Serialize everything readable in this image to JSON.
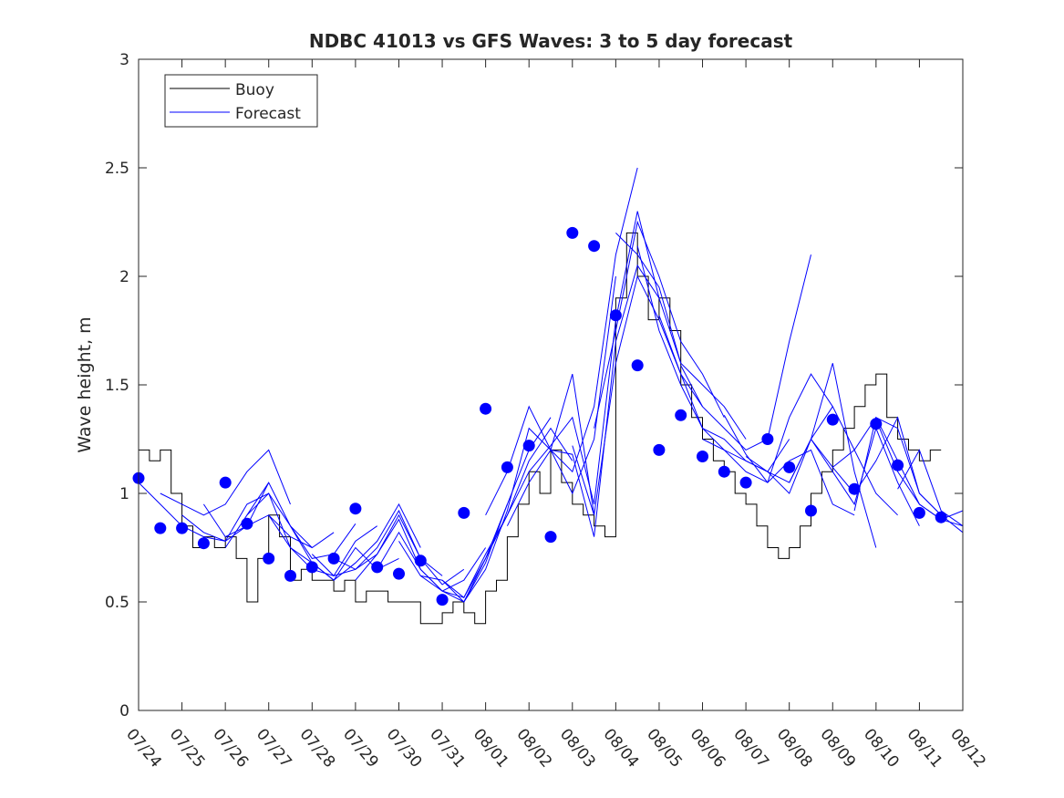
{
  "chart_data": {
    "type": "line",
    "title": "NDBC 41013 vs GFS Waves: 3 to 5 day forecast",
    "xlabel": "",
    "ylabel": "Wave height, m",
    "xlim": [
      0,
      19
    ],
    "ylim": [
      0,
      3
    ],
    "grid": false,
    "legend_position": "top-left",
    "x_tick_labels": [
      "07/24",
      "07/25",
      "07/26",
      "07/27",
      "07/28",
      "07/29",
      "07/30",
      "07/31",
      "08/01",
      "08/02",
      "08/03",
      "08/04",
      "08/05",
      "08/06",
      "08/07",
      "08/08",
      "08/09",
      "08/10",
      "08/11",
      "08/12"
    ],
    "y_ticks": [
      0,
      0.5,
      1,
      1.5,
      2,
      2.5,
      3
    ],
    "y_tick_labels": [
      "0",
      "0.5",
      "1",
      "1.5",
      "2",
      "2.5",
      "3"
    ],
    "legend": [
      {
        "label": "Buoy",
        "color": "#000000"
      },
      {
        "label": "Forecast",
        "color": "#0000ff"
      }
    ],
    "buoy_color": "#000000",
    "forecast_color": "#0000ff",
    "buoy": {
      "name": "Buoy",
      "x": [
        0.0,
        0.25,
        0.5,
        0.75,
        1.0,
        1.25,
        1.5,
        1.75,
        2.0,
        2.25,
        2.5,
        2.75,
        3.0,
        3.25,
        3.5,
        3.75,
        4.0,
        4.25,
        4.5,
        4.75,
        5.0,
        5.25,
        5.5,
        5.75,
        6.0,
        6.25,
        6.5,
        6.75,
        7.0,
        7.25,
        7.5,
        7.75,
        8.0,
        8.25,
        8.5,
        8.75,
        9.0,
        9.25,
        9.5,
        9.75,
        10.0,
        10.25,
        10.5,
        10.75,
        11.0,
        11.25,
        11.5,
        11.75,
        12.0,
        12.25,
        12.5,
        12.75,
        13.0,
        13.25,
        13.5,
        13.75,
        14.0,
        14.25,
        14.5,
        14.75,
        15.0,
        15.25,
        15.5,
        15.75,
        16.0,
        16.25,
        16.5,
        16.75,
        17.0,
        17.25,
        17.5,
        17.75,
        18.0,
        18.25
      ],
      "y": [
        1.2,
        1.15,
        1.2,
        1.0,
        0.85,
        0.75,
        0.8,
        0.75,
        0.8,
        0.7,
        0.5,
        0.7,
        0.9,
        0.8,
        0.6,
        0.65,
        0.6,
        0.6,
        0.55,
        0.6,
        0.5,
        0.55,
        0.55,
        0.5,
        0.5,
        0.5,
        0.4,
        0.4,
        0.45,
        0.5,
        0.45,
        0.4,
        0.55,
        0.6,
        0.8,
        0.95,
        1.1,
        1.0,
        1.2,
        1.05,
        0.95,
        0.9,
        0.85,
        0.8,
        1.9,
        2.2,
        2.0,
        1.8,
        1.9,
        1.75,
        1.5,
        1.35,
        1.25,
        1.15,
        1.1,
        1.0,
        0.95,
        0.85,
        0.75,
        0.7,
        0.75,
        0.85,
        1.0,
        1.1,
        1.2,
        1.3,
        1.4,
        1.5,
        1.55,
        1.35,
        1.25,
        1.2,
        1.15,
        1.2
      ]
    },
    "forecast_runs": [
      {
        "x": [
          0.0,
          0.5,
          1.0,
          1.5,
          2.0,
          2.5,
          3.0
        ],
        "y": [
          1.05,
          0.95,
          0.85,
          0.8,
          0.78,
          0.85,
          1.05
        ]
      },
      {
        "x": [
          0.5,
          1.0,
          1.5,
          2.0,
          2.5,
          3.0,
          3.5
        ],
        "y": [
          1.0,
          0.95,
          0.9,
          0.95,
          1.1,
          1.2,
          0.95
        ]
      },
      {
        "x": [
          1.0,
          1.5,
          2.0,
          2.5,
          3.0,
          3.5,
          4.0
        ],
        "y": [
          0.9,
          0.82,
          0.78,
          0.95,
          1.0,
          0.85,
          0.75
        ]
      },
      {
        "x": [
          1.5,
          2.0,
          2.5,
          3.0,
          3.5,
          4.0,
          4.5
        ],
        "y": [
          0.95,
          0.8,
          0.85,
          0.9,
          0.8,
          0.75,
          0.82
        ]
      },
      {
        "x": [
          2.0,
          2.5,
          3.0,
          3.5,
          4.0,
          4.5,
          5.0
        ],
        "y": [
          0.75,
          0.9,
          1.05,
          0.85,
          0.7,
          0.72,
          0.86
        ]
      },
      {
        "x": [
          2.5,
          3.0,
          3.5,
          4.0,
          4.5,
          5.0,
          5.5
        ],
        "y": [
          0.9,
          1.0,
          0.75,
          0.65,
          0.62,
          0.78,
          0.85
        ]
      },
      {
        "x": [
          3.0,
          3.5,
          4.0,
          4.5,
          5.0,
          5.5,
          6.0
        ],
        "y": [
          0.9,
          0.75,
          0.68,
          0.6,
          0.75,
          0.65,
          0.7
        ]
      },
      {
        "x": [
          3.5,
          4.0,
          4.5,
          5.0,
          5.5,
          6.0,
          6.5
        ],
        "y": [
          0.85,
          0.68,
          0.6,
          0.68,
          0.78,
          0.95,
          0.75
        ]
      },
      {
        "x": [
          4.0,
          4.5,
          5.0,
          5.5,
          6.0,
          6.5,
          7.0
        ],
        "y": [
          0.72,
          0.62,
          0.65,
          0.75,
          0.92,
          0.7,
          0.62
        ]
      },
      {
        "x": [
          4.5,
          5.0,
          5.5,
          6.0,
          6.5,
          7.0,
          7.5
        ],
        "y": [
          0.7,
          0.65,
          0.72,
          0.9,
          0.7,
          0.58,
          0.65
        ]
      },
      {
        "x": [
          5.0,
          5.5,
          6.0,
          6.5,
          7.0,
          7.5,
          8.0
        ],
        "y": [
          0.6,
          0.72,
          0.88,
          0.65,
          0.55,
          0.6,
          0.75
        ]
      },
      {
        "x": [
          5.5,
          6.0,
          6.5,
          7.0,
          7.5,
          8.0,
          8.5
        ],
        "y": [
          0.65,
          0.82,
          0.65,
          0.55,
          0.5,
          0.7,
          0.95
        ]
      },
      {
        "x": [
          6.0,
          6.5,
          7.0,
          7.5,
          8.0,
          8.5,
          9.0
        ],
        "y": [
          0.78,
          0.62,
          0.55,
          0.52,
          0.72,
          0.9,
          1.1
        ]
      },
      {
        "x": [
          6.5,
          7.0,
          7.5,
          8.0,
          8.5,
          9.0,
          9.5
        ],
        "y": [
          0.62,
          0.6,
          0.5,
          0.68,
          0.95,
          1.2,
          1.35
        ]
      },
      {
        "x": [
          7.0,
          7.5,
          8.0,
          8.5,
          9.0,
          9.5,
          10.0
        ],
        "y": [
          0.6,
          0.52,
          0.7,
          0.9,
          1.15,
          1.3,
          1.15
        ]
      },
      {
        "x": [
          7.5,
          8.0,
          8.5,
          9.0,
          9.5,
          10.0,
          10.5
        ],
        "y": [
          0.5,
          0.65,
          0.92,
          1.3,
          1.2,
          1.55,
          0.9
        ]
      },
      {
        "x": [
          8.0,
          8.5,
          9.0,
          9.5,
          10.0,
          10.5,
          11.0
        ],
        "y": [
          0.9,
          1.1,
          1.4,
          1.2,
          1.0,
          1.25,
          2.0
        ]
      },
      {
        "x": [
          8.5,
          9.0,
          9.5,
          10.0,
          10.5,
          11.0,
          11.5
        ],
        "y": [
          0.85,
          1.05,
          1.2,
          1.1,
          1.4,
          2.1,
          2.5
        ]
      },
      {
        "x": [
          9.0,
          9.5,
          10.0,
          10.5,
          11.0,
          11.5,
          12.0
        ],
        "y": [
          1.1,
          1.22,
          1.35,
          0.95,
          1.8,
          2.3,
          1.9
        ]
      },
      {
        "x": [
          9.5,
          10.0,
          10.5,
          11.0,
          11.5,
          12.0,
          12.5
        ],
        "y": [
          1.2,
          1.18,
          0.8,
          1.7,
          2.05,
          1.9,
          1.6
        ]
      },
      {
        "x": [
          10.0,
          10.5,
          11.0,
          11.5,
          12.0,
          12.5,
          13.0
        ],
        "y": [
          1.22,
          0.9,
          1.6,
          2.0,
          1.8,
          1.55,
          1.4
        ]
      },
      {
        "x": [
          10.5,
          11.0,
          11.5,
          12.0,
          12.5,
          13.0,
          13.5
        ],
        "y": [
          1.3,
          1.75,
          2.25,
          2.0,
          1.7,
          1.55,
          1.35
        ]
      },
      {
        "x": [
          11.0,
          11.5,
          12.0,
          12.5,
          13.0,
          13.5,
          14.0
        ],
        "y": [
          2.2,
          2.1,
          1.95,
          1.6,
          1.5,
          1.4,
          1.25
        ]
      },
      {
        "x": [
          11.5,
          12.0,
          12.5,
          13.0,
          13.5,
          14.0,
          14.5
        ],
        "y": [
          2.14,
          1.75,
          1.5,
          1.3,
          1.2,
          1.15,
          1.1
        ]
      },
      {
        "x": [
          12.0,
          12.5,
          13.0,
          13.5,
          14.0,
          14.5,
          15.0
        ],
        "y": [
          1.82,
          1.55,
          1.3,
          1.25,
          1.15,
          1.1,
          1.25
        ]
      },
      {
        "x": [
          12.5,
          13.0,
          13.5,
          14.0,
          14.5,
          15.0,
          15.5
        ],
        "y": [
          1.59,
          1.4,
          1.3,
          1.2,
          1.25,
          1.7,
          2.1
        ]
      },
      {
        "x": [
          13.0,
          13.5,
          14.0,
          14.5,
          15.0,
          15.5,
          16.0
        ],
        "y": [
          1.25,
          1.2,
          1.1,
          1.05,
          1.35,
          1.55,
          1.4
        ]
      },
      {
        "x": [
          13.5,
          14.0,
          14.5,
          15.0,
          15.5,
          16.0,
          16.5
        ],
        "y": [
          1.36,
          1.18,
          1.05,
          1.15,
          1.2,
          0.95,
          0.9
        ]
      },
      {
        "x": [
          14.0,
          14.5,
          15.0,
          15.5,
          16.0,
          16.5,
          17.0
        ],
        "y": [
          1.17,
          1.1,
          1.0,
          1.25,
          1.6,
          1.1,
          0.75
        ]
      },
      {
        "x": [
          14.5,
          15.0,
          15.5,
          16.0,
          16.5,
          17.0,
          17.5
        ],
        "y": [
          1.1,
          1.05,
          1.25,
          1.4,
          1.2,
          1.0,
          0.9
        ]
      },
      {
        "x": [
          15.0,
          15.5,
          16.0,
          16.5,
          17.0,
          17.5,
          18.0
        ],
        "y": [
          1.05,
          1.25,
          1.1,
          0.95,
          1.3,
          1.05,
          0.85
        ]
      },
      {
        "x": [
          15.5,
          16.0,
          16.5,
          17.0,
          17.5,
          18.0,
          18.5
        ],
        "y": [
          1.25,
          1.12,
          1.0,
          1.15,
          1.35,
          1.0,
          0.9
        ]
      },
      {
        "x": [
          16.0,
          16.5,
          17.0,
          17.5,
          18.0,
          18.5,
          19.0
        ],
        "y": [
          1.12,
          1.2,
          1.35,
          1.15,
          0.95,
          0.88,
          0.85
        ]
      },
      {
        "x": [
          16.5,
          17.0,
          17.5,
          18.0,
          18.5,
          19.0
        ],
        "y": [
          0.92,
          1.35,
          1.3,
          1.0,
          0.9,
          0.82
        ]
      },
      {
        "x": [
          17.0,
          17.5,
          18.0,
          18.5,
          19.0
        ],
        "y": [
          1.34,
          1.1,
          0.95,
          0.88,
          0.92
        ]
      },
      {
        "x": [
          17.5,
          18.0,
          18.5,
          19.0
        ],
        "y": [
          1.02,
          1.2,
          0.92,
          0.85
        ]
      }
    ],
    "forecast_points": {
      "name": "Forecast",
      "x": [
        0.0,
        0.5,
        1.0,
        1.5,
        2.0,
        2.5,
        3.0,
        3.5,
        4.0,
        4.5,
        5.0,
        5.5,
        6.0,
        6.5,
        7.0,
        7.5,
        8.0,
        8.5,
        9.0,
        9.5,
        10.0,
        10.5,
        11.0,
        11.5,
        12.0,
        12.5,
        13.0,
        13.5,
        14.0,
        14.5,
        15.0,
        15.5,
        16.0,
        16.5,
        17.0,
        17.5,
        18.0,
        18.5
      ],
      "y": [
        1.07,
        0.84,
        0.84,
        0.77,
        1.05,
        0.86,
        0.7,
        0.62,
        0.66,
        0.7,
        0.93,
        0.66,
        0.63,
        0.69,
        0.51,
        0.91,
        1.39,
        1.12,
        1.22,
        0.8,
        2.2,
        2.14,
        1.82,
        1.59,
        1.2,
        1.36,
        1.17,
        1.1,
        1.05,
        1.25,
        1.12,
        0.92,
        1.34,
        1.02,
        1.32,
        1.13,
        0.91,
        0.89
      ]
    }
  }
}
